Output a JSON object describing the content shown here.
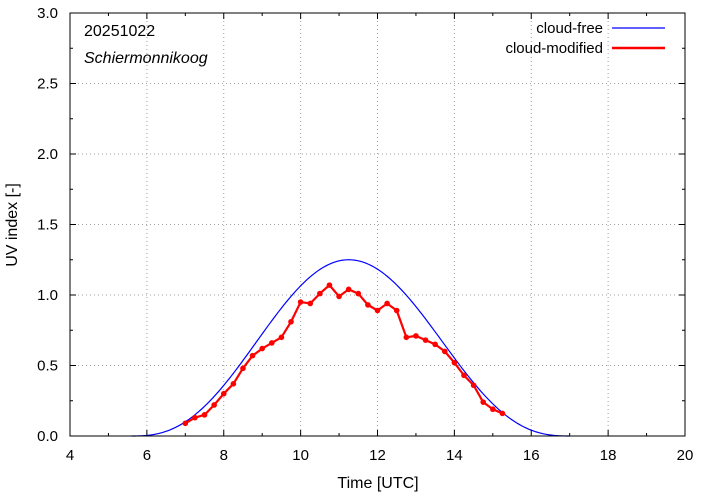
{
  "chart_data": {
    "type": "line",
    "title": "",
    "date_label": "20251022",
    "location_label": "Schiermonnikoog",
    "xlabel": "Time  [UTC]",
    "ylabel": "UV index  [-]",
    "xlim": [
      4,
      20
    ],
    "ylim": [
      0,
      3.0
    ],
    "xticks": [
      4,
      6,
      8,
      10,
      12,
      14,
      16,
      18,
      20
    ],
    "xtick_labels": [
      "4",
      "6",
      "8",
      "10",
      "12",
      "14",
      "16",
      "18",
      "20"
    ],
    "yticks": [
      0,
      0.5,
      1.0,
      1.5,
      2.0,
      2.5,
      3.0
    ],
    "ytick_labels": [
      "0.0",
      "0.5",
      "1.0",
      "1.5",
      "2.0",
      "2.5",
      "3.0"
    ],
    "grid": true,
    "legend_position": "top-right",
    "series": [
      {
        "name": "cloud-free",
        "color": "#0000ff",
        "style": "line",
        "model": {
          "start": 5.6,
          "end": 17.0,
          "peak_time": 11.25,
          "peak_value": 1.25
        }
      },
      {
        "name": "cloud-modified",
        "color": "#ff0000",
        "style": "line-points",
        "x": [
          7.0,
          7.25,
          7.5,
          7.75,
          8.0,
          8.25,
          8.5,
          8.75,
          9.0,
          9.25,
          9.5,
          9.75,
          10.0,
          10.25,
          10.5,
          10.75,
          11.0,
          11.25,
          11.5,
          11.75,
          12.0,
          12.25,
          12.5,
          12.75,
          13.0,
          13.25,
          13.5,
          13.75,
          14.0,
          14.25,
          14.5,
          14.75,
          15.0,
          15.25
        ],
        "values": [
          0.09,
          0.13,
          0.15,
          0.22,
          0.3,
          0.37,
          0.48,
          0.57,
          0.62,
          0.66,
          0.7,
          0.81,
          0.95,
          0.94,
          1.01,
          1.07,
          0.99,
          1.04,
          1.01,
          0.93,
          0.89,
          0.94,
          0.89,
          0.7,
          0.71,
          0.68,
          0.65,
          0.6,
          0.52,
          0.43,
          0.36,
          0.24,
          0.19,
          0.16
        ]
      }
    ]
  }
}
